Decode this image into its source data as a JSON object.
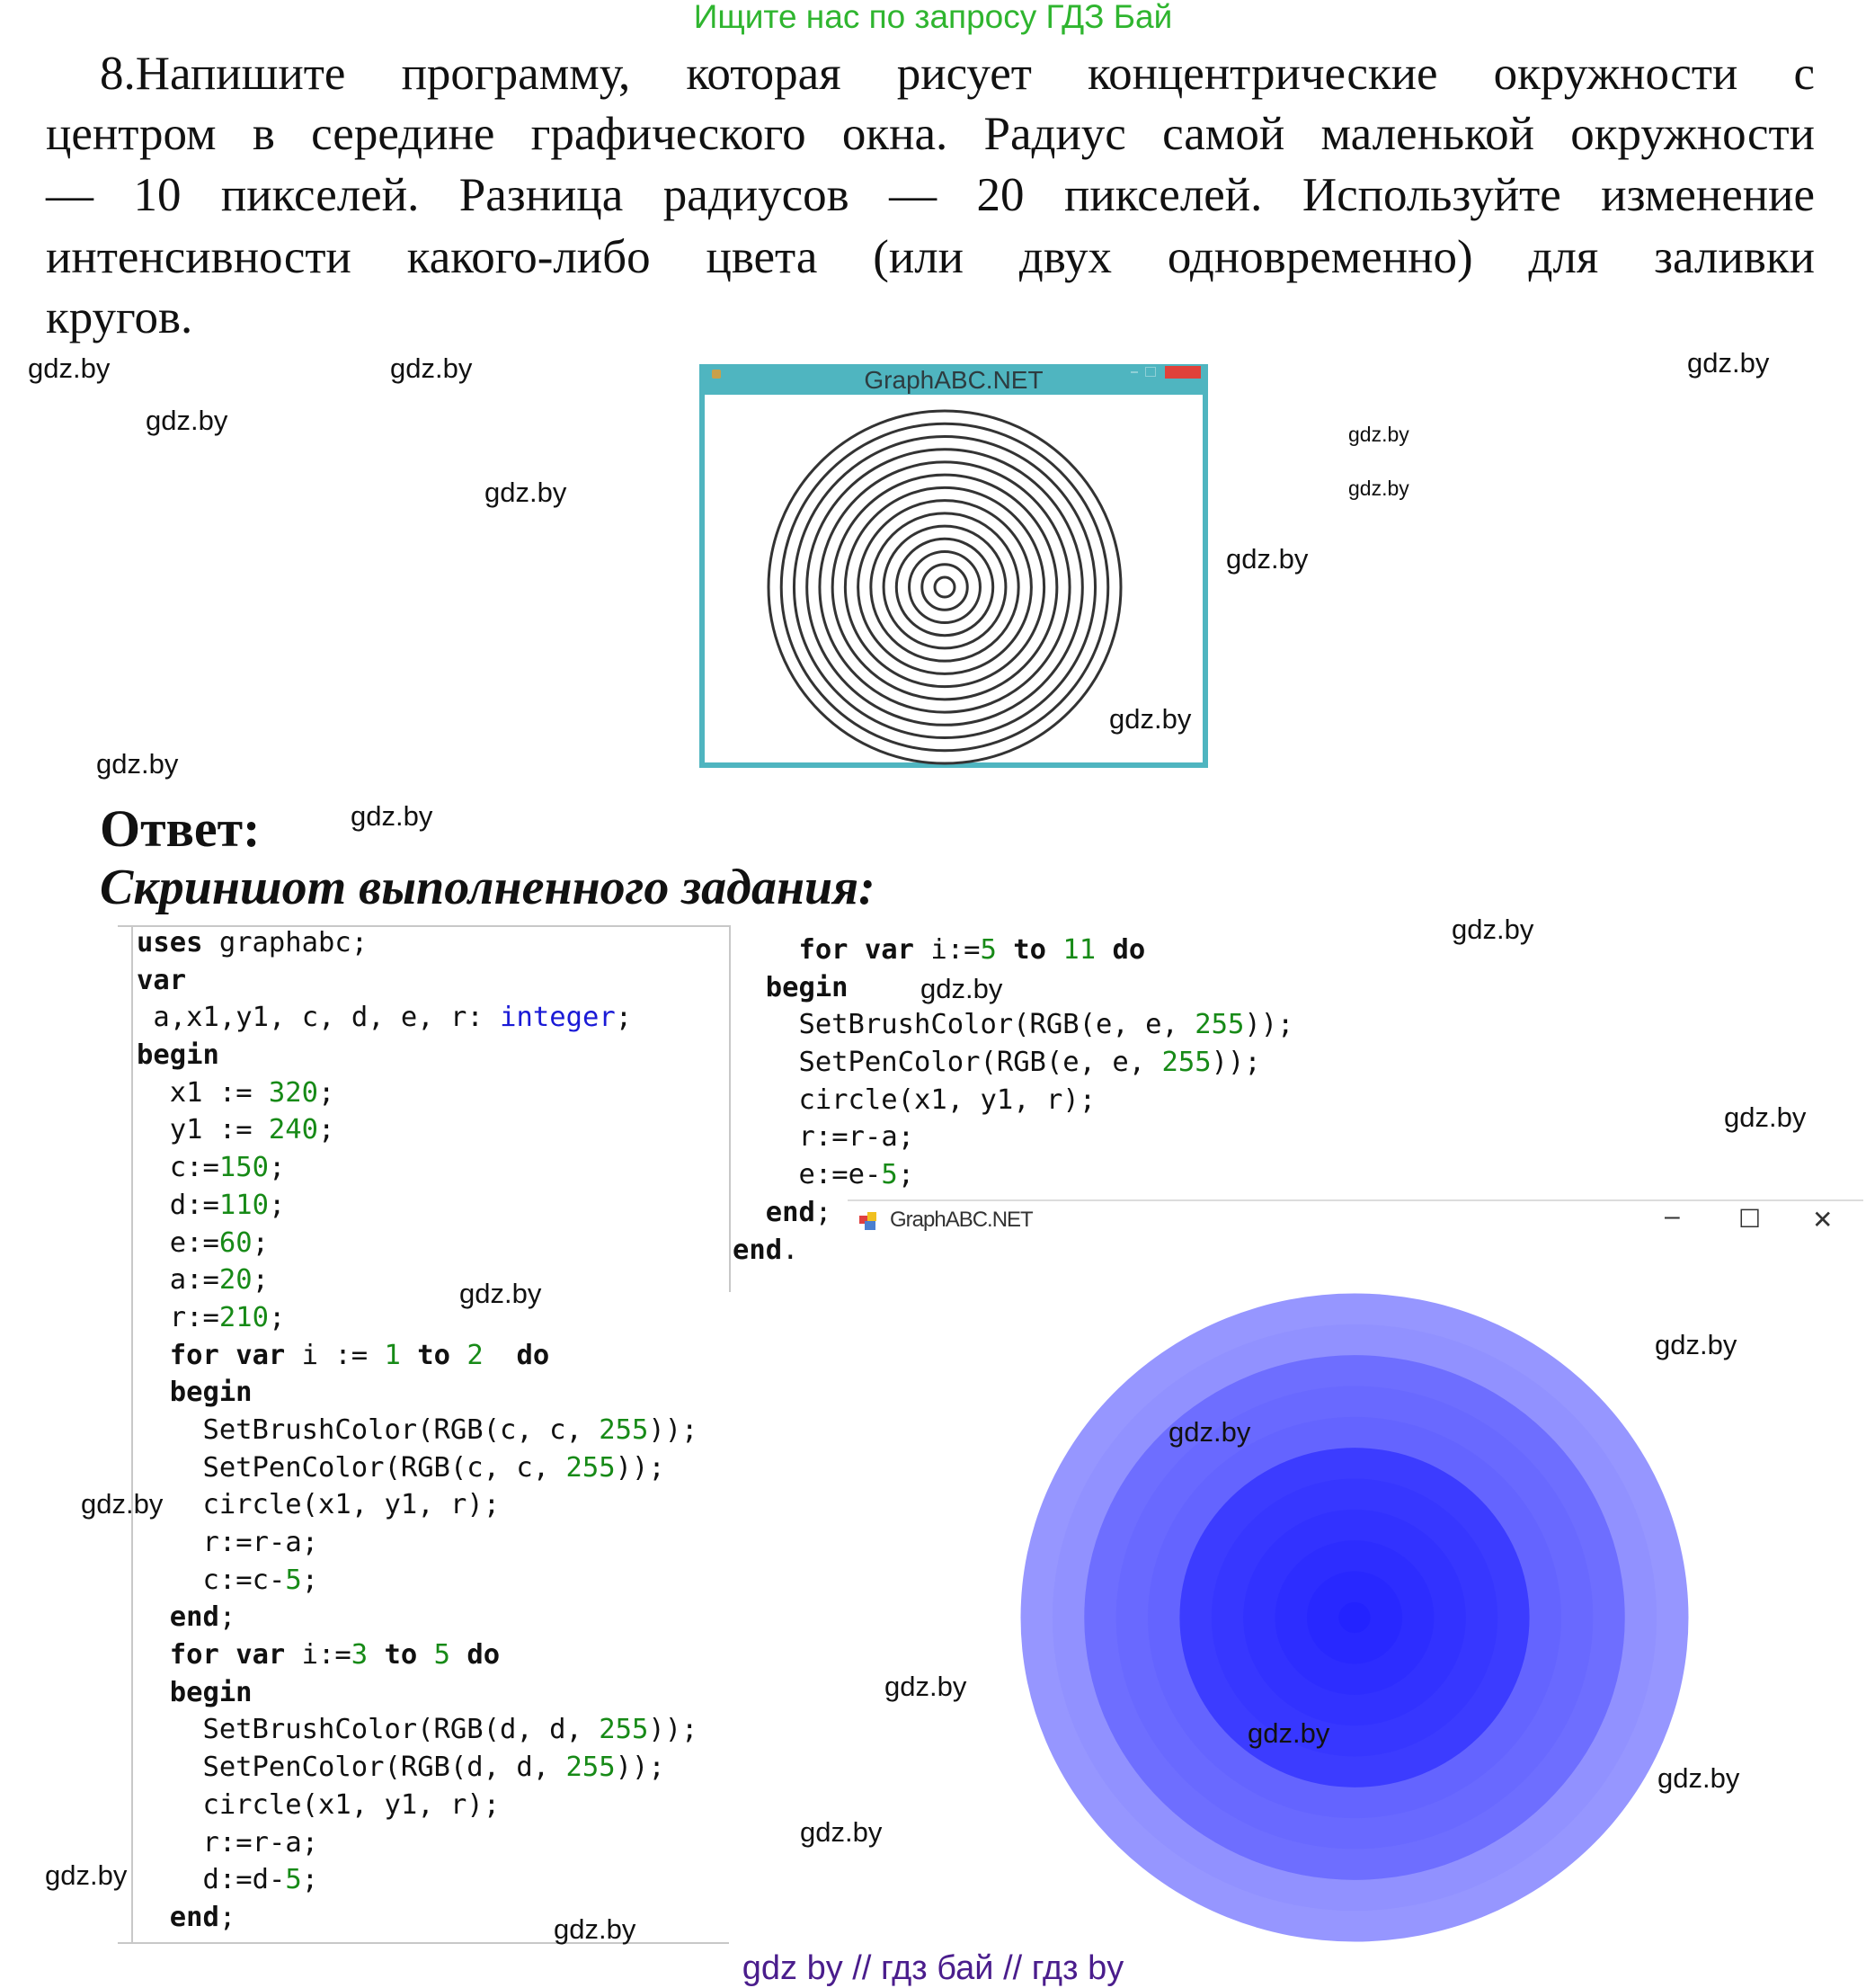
{
  "banner": "Ищите нас по запросу ГДЗ Бай",
  "task": {
    "lines": [
      "8.Напишите программу, которая рисует концентрические окружности с",
      "центром в середине графического окна. Радиус самой маленькой окружности",
      "— 10 пикселей. Разница радиусов — 20 пикселей. Используйте изменение",
      "интенсивности какого-либо цвета (или двух одновременно) для заливки",
      "кругов."
    ]
  },
  "example_window": {
    "title": "GraphABC.NET",
    "ring_count": 14,
    "ring_color": "#333333",
    "accent": "#4fb5c0"
  },
  "answer": {
    "label": "Ответ:",
    "subtitle": "Скриншот выполненного задания:"
  },
  "code_left": [
    "uses graphabc;",
    "var",
    " a,x1,y1, c, d, e, r: integer;",
    "begin",
    "  x1 := 320;",
    "  y1 := 240;",
    "  c:=150;",
    "  d:=110;",
    "  e:=60;",
    "  a:=20;",
    "  r:=210;",
    "  for var i := 1 to 2  do",
    "  begin",
    "    SetBrushColor(RGB(c, c, 255));",
    "    SetPenColor(RGB(c, c, 255));",
    "    circle(x1, y1, r);",
    "    r:=r-a;",
    "    c:=c-5;",
    "  end;",
    "  for var i:=3 to 5 do",
    "  begin",
    "    SetBrushColor(RGB(d, d, 255));",
    "    SetPenColor(RGB(d, d, 255));",
    "    circle(x1, y1, r);",
    "    r:=r-a;",
    "    d:=d-5;",
    "  end;"
  ],
  "code_right": [
    "    for var i:=5 to 11 do",
    "  begin",
    "    SetBrushColor(RGB(e, e, 255));",
    "    SetPenColor(RGB(e, e, 255));",
    "    circle(x1, y1, r);",
    "    r:=r-a;",
    "    e:=e-5;",
    "  end;",
    "end."
  ],
  "result_window": {
    "title": "GraphABC.NET",
    "controls": {
      "minimize": "–",
      "maximize": "☐",
      "close": "✕"
    },
    "circles": [
      {
        "r": 210,
        "c": 150
      },
      {
        "r": 190,
        "c": 145
      },
      {
        "r": 170,
        "c": 110
      },
      {
        "r": 150,
        "c": 105
      },
      {
        "r": 130,
        "c": 100
      },
      {
        "r": 110,
        "c": 60
      },
      {
        "r": 90,
        "c": 55
      },
      {
        "r": 70,
        "c": 50
      },
      {
        "r": 50,
        "c": 45
      },
      {
        "r": 30,
        "c": 40
      },
      {
        "r": 10,
        "c": 35
      }
    ]
  },
  "watermark": "gdz.by",
  "footer": "gdz by  //  гдз бай  //  гдз by"
}
